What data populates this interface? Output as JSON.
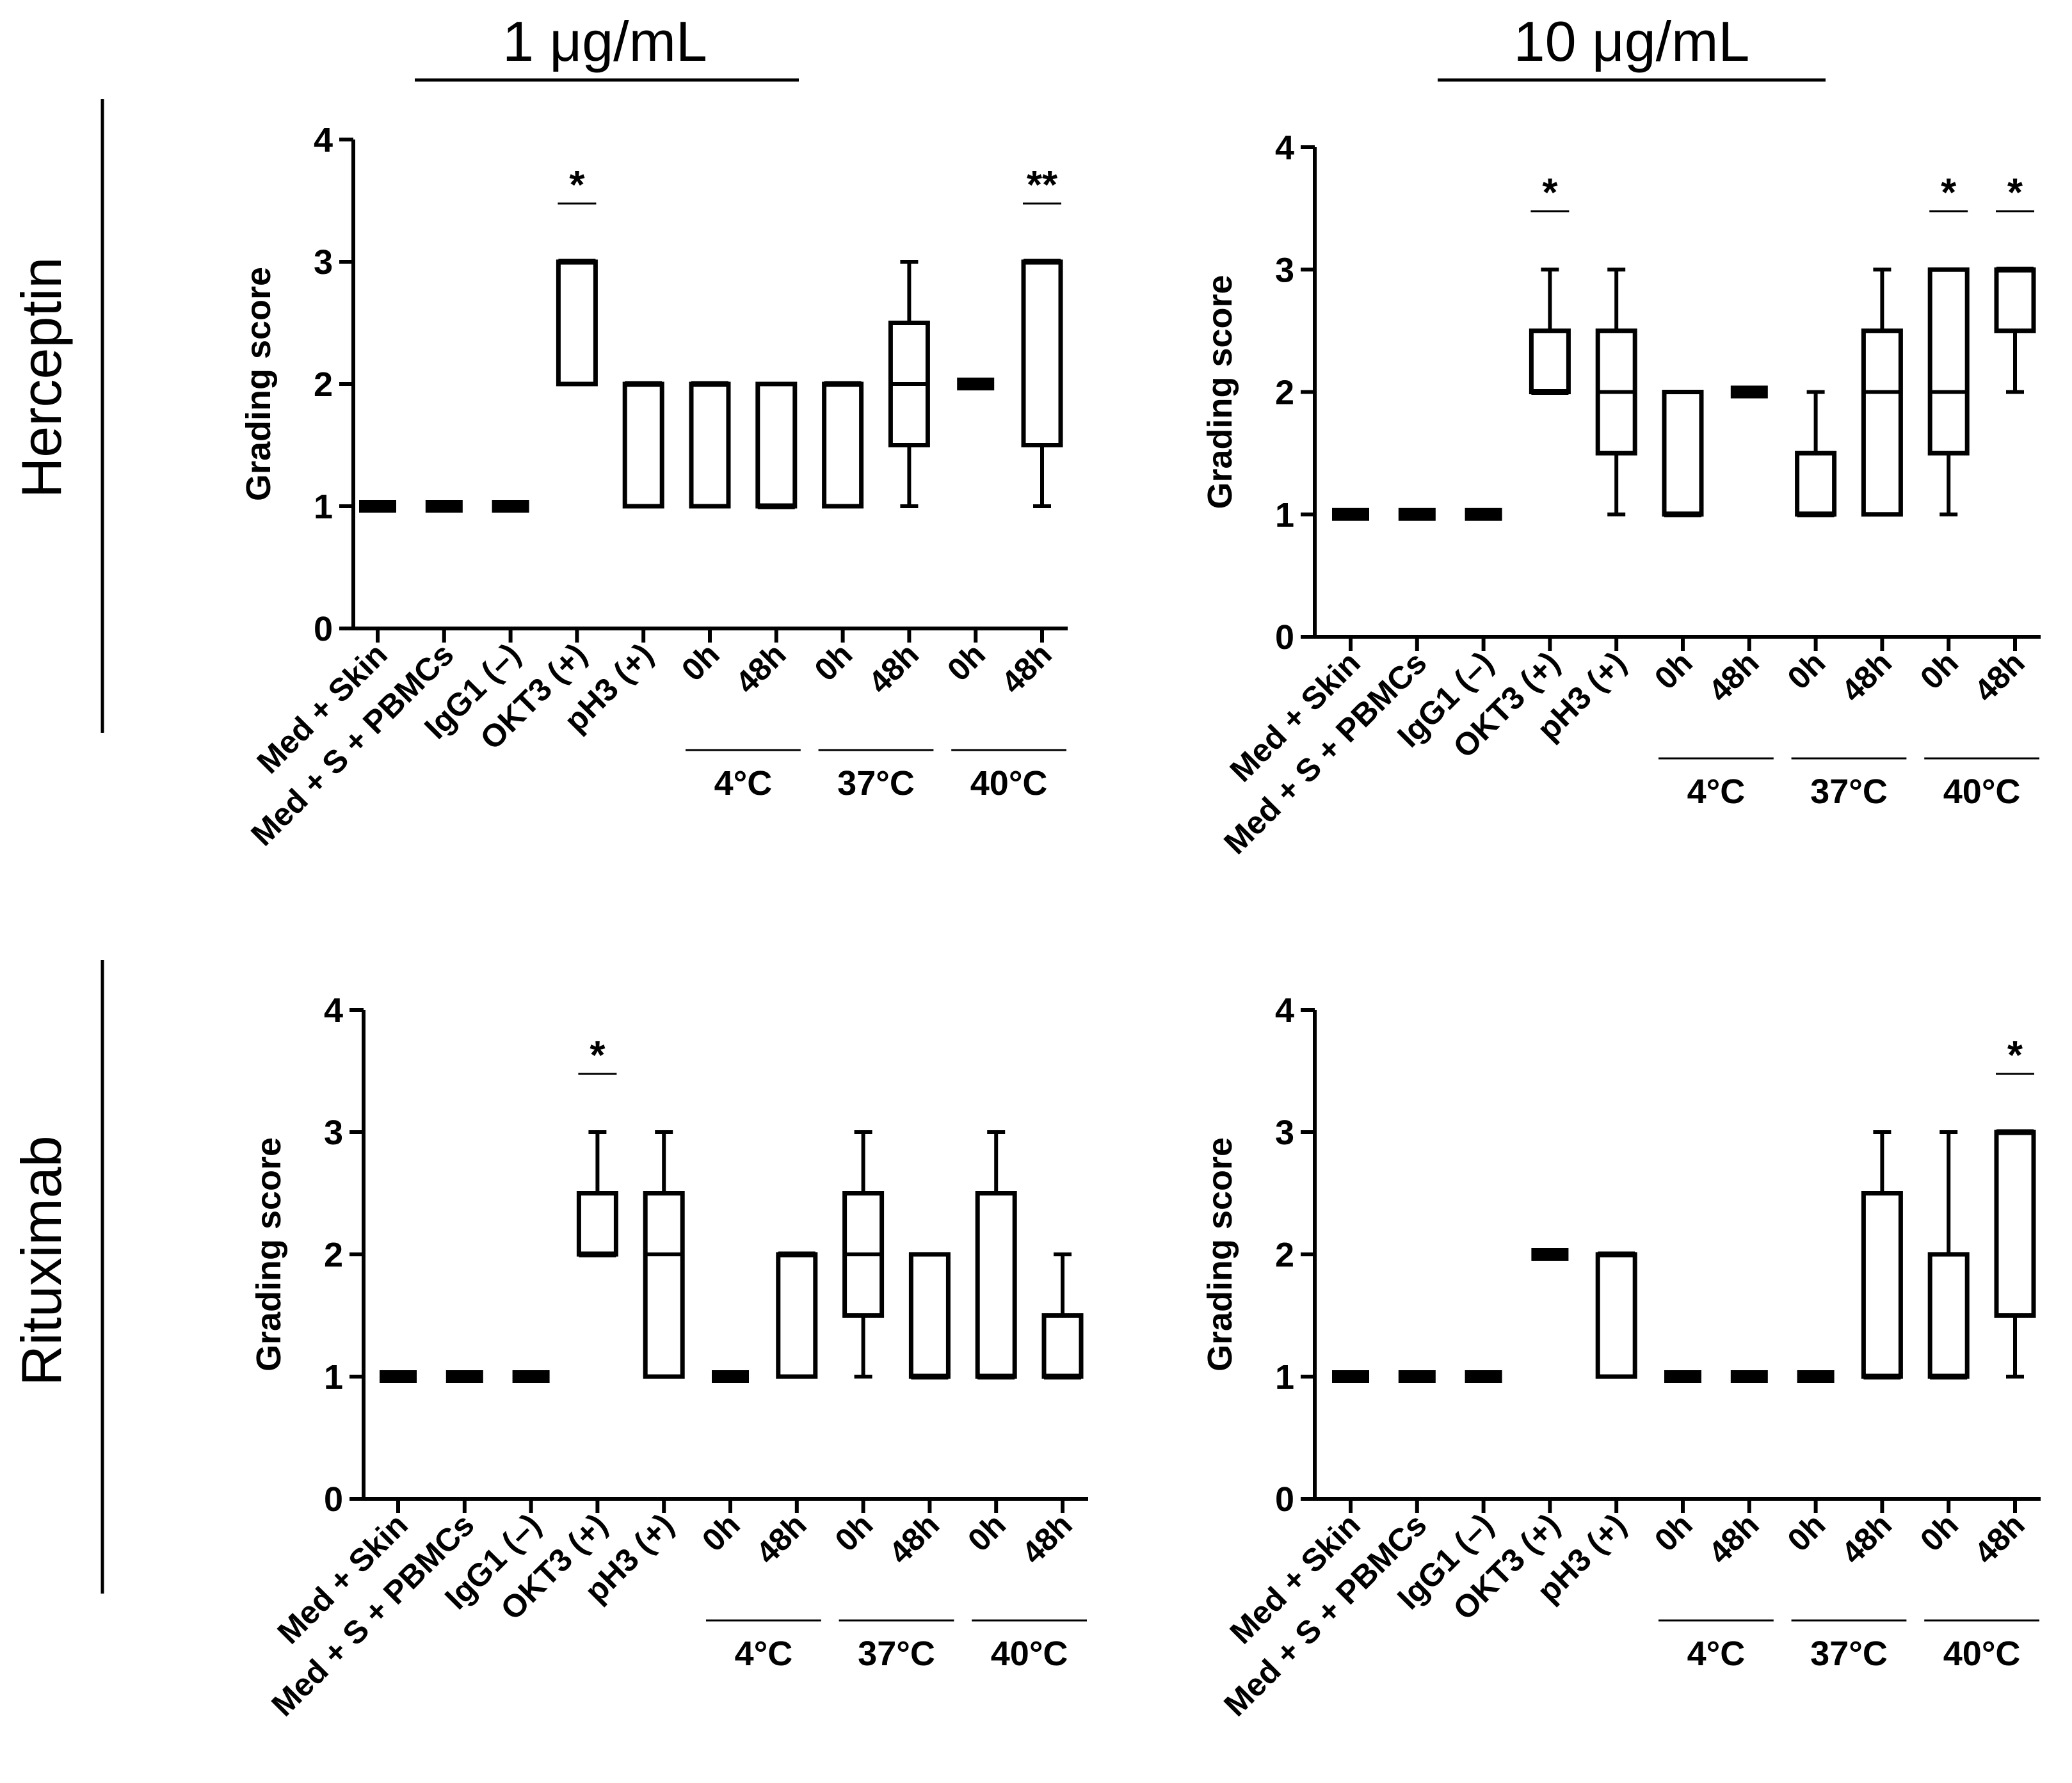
{
  "figure": {
    "columns": [
      "1 μg/mL",
      "10 μg/mL"
    ],
    "rows": [
      "Herceptin",
      "Rituximab"
    ]
  },
  "chart_data": [
    {
      "type": "boxplot",
      "panel": "Herceptin, 1 μg/mL",
      "ylabel": "Grading score",
      "ylim": [
        0,
        4
      ],
      "yticks": [
        "0",
        "1",
        "2",
        "3",
        "4"
      ],
      "categories": [
        "Med + Skin",
        "Med + S + PBMCs",
        "IgG1 (–)",
        "OKT3 (+)",
        "pH3 (+)",
        "0h",
        "48h",
        "0h",
        "48h",
        "0h",
        "48h"
      ],
      "groups": [
        {
          "label": "4°C",
          "members": [
            5,
            6
          ]
        },
        {
          "label": "37°C",
          "members": [
            7,
            8
          ]
        },
        {
          "label": "40°C",
          "members": [
            9,
            10
          ]
        }
      ],
      "boxes": [
        {
          "min": 1,
          "q1": 1,
          "median": 1,
          "q3": 1,
          "max": 1
        },
        {
          "min": 1,
          "q1": 1,
          "median": 1,
          "q3": 1,
          "max": 1
        },
        {
          "min": 1,
          "q1": 1,
          "median": 1,
          "q3": 1,
          "max": 1
        },
        {
          "min": 2,
          "q1": 2,
          "median": 3,
          "q3": 3,
          "max": 3
        },
        {
          "min": 1,
          "q1": 1,
          "median": 2,
          "q3": 2,
          "max": 2
        },
        {
          "min": 1,
          "q1": 1,
          "median": 2,
          "q3": 2,
          "max": 2
        },
        {
          "min": 1,
          "q1": 1,
          "median": 1,
          "q3": 2,
          "max": 2
        },
        {
          "min": 1,
          "q1": 1,
          "median": 2,
          "q3": 2,
          "max": 2
        },
        {
          "min": 1,
          "q1": 1.5,
          "median": 2,
          "q3": 2.5,
          "max": 3
        },
        {
          "min": 2,
          "q1": 2,
          "median": 2,
          "q3": 2,
          "max": 2
        },
        {
          "min": 1,
          "q1": 1.5,
          "median": 3,
          "q3": 3,
          "max": 3
        }
      ],
      "significance": [
        {
          "index": 3,
          "label": "*"
        },
        {
          "index": 10,
          "label": "**"
        }
      ]
    },
    {
      "type": "boxplot",
      "panel": "Herceptin, 10 μg/mL",
      "ylabel": "Grading score",
      "ylim": [
        0,
        4
      ],
      "yticks": [
        "0",
        "1",
        "2",
        "3",
        "4"
      ],
      "categories": [
        "Med + Skin",
        "Med + S + PBMCs",
        "IgG1 (–)",
        "OKT3 (+)",
        "pH3 (+)",
        "0h",
        "48h",
        "0h",
        "48h",
        "0h",
        "48h"
      ],
      "groups": [
        {
          "label": "4°C",
          "members": [
            5,
            6
          ]
        },
        {
          "label": "37°C",
          "members": [
            7,
            8
          ]
        },
        {
          "label": "40°C",
          "members": [
            9,
            10
          ]
        }
      ],
      "boxes": [
        {
          "min": 1,
          "q1": 1,
          "median": 1,
          "q3": 1,
          "max": 1
        },
        {
          "min": 1,
          "q1": 1,
          "median": 1,
          "q3": 1,
          "max": 1
        },
        {
          "min": 1,
          "q1": 1,
          "median": 1,
          "q3": 1,
          "max": 1
        },
        {
          "min": 2,
          "q1": 2,
          "median": 2,
          "q3": 2.5,
          "max": 3
        },
        {
          "min": 1,
          "q1": 1.5,
          "median": 2,
          "q3": 2.5,
          "max": 3
        },
        {
          "min": 1,
          "q1": 1,
          "median": 1,
          "q3": 2,
          "max": 2
        },
        {
          "min": 2,
          "q1": 2,
          "median": 2,
          "q3": 2,
          "max": 2
        },
        {
          "min": 1,
          "q1": 1,
          "median": 1,
          "q3": 1.5,
          "max": 2
        },
        {
          "min": 1,
          "q1": 1,
          "median": 2,
          "q3": 2.5,
          "max": 3
        },
        {
          "min": 1,
          "q1": 1.5,
          "median": 2,
          "q3": 3,
          "max": 3
        },
        {
          "min": 2,
          "q1": 2.5,
          "median": 3,
          "q3": 3,
          "max": 3
        }
      ],
      "significance": [
        {
          "index": 3,
          "label": "*"
        },
        {
          "index": 9,
          "label": "*"
        },
        {
          "index": 10,
          "label": "*"
        }
      ]
    },
    {
      "type": "boxplot",
      "panel": "Rituximab, 1 μg/mL",
      "ylabel": "Grading score",
      "ylim": [
        0,
        4
      ],
      "yticks": [
        "0",
        "1",
        "2",
        "3",
        "4"
      ],
      "categories": [
        "Med + Skin",
        "Med + S + PBMCs",
        "IgG1 (–)",
        "OKT3 (+)",
        "pH3 (+)",
        "0h",
        "48h",
        "0h",
        "48h",
        "0h",
        "48h"
      ],
      "groups": [
        {
          "label": "4°C",
          "members": [
            5,
            6
          ]
        },
        {
          "label": "37°C",
          "members": [
            7,
            8
          ]
        },
        {
          "label": "40°C",
          "members": [
            9,
            10
          ]
        }
      ],
      "boxes": [
        {
          "min": 1,
          "q1": 1,
          "median": 1,
          "q3": 1,
          "max": 1
        },
        {
          "min": 1,
          "q1": 1,
          "median": 1,
          "q3": 1,
          "max": 1
        },
        {
          "min": 1,
          "q1": 1,
          "median": 1,
          "q3": 1,
          "max": 1
        },
        {
          "min": 2,
          "q1": 2,
          "median": 2,
          "q3": 2.5,
          "max": 3
        },
        {
          "min": 1,
          "q1": 1,
          "median": 2,
          "q3": 2.5,
          "max": 3
        },
        {
          "min": 1,
          "q1": 1,
          "median": 1,
          "q3": 1,
          "max": 1
        },
        {
          "min": 1,
          "q1": 1,
          "median": 2,
          "q3": 2,
          "max": 2
        },
        {
          "min": 1,
          "q1": 1.5,
          "median": 2,
          "q3": 2.5,
          "max": 3
        },
        {
          "min": 1,
          "q1": 1,
          "median": 1,
          "q3": 2,
          "max": 2
        },
        {
          "min": 1,
          "q1": 1,
          "median": 1,
          "q3": 2.5,
          "max": 3
        },
        {
          "min": 1,
          "q1": 1,
          "median": 1,
          "q3": 1.5,
          "max": 2
        }
      ],
      "significance": [
        {
          "index": 3,
          "label": "*"
        }
      ]
    },
    {
      "type": "boxplot",
      "panel": "Rituximab, 10 μg/mL",
      "ylabel": "Grading score",
      "ylim": [
        0,
        4
      ],
      "yticks": [
        "0",
        "1",
        "2",
        "3",
        "4"
      ],
      "categories": [
        "Med + Skin",
        "Med + S + PBMCs",
        "IgG1 (–)",
        "OKT3 (+)",
        "pH3 (+)",
        "0h",
        "48h",
        "0h",
        "48h",
        "0h",
        "48h"
      ],
      "groups": [
        {
          "label": "4°C",
          "members": [
            5,
            6
          ]
        },
        {
          "label": "37°C",
          "members": [
            7,
            8
          ]
        },
        {
          "label": "40°C",
          "members": [
            9,
            10
          ]
        }
      ],
      "boxes": [
        {
          "min": 1,
          "q1": 1,
          "median": 1,
          "q3": 1,
          "max": 1
        },
        {
          "min": 1,
          "q1": 1,
          "median": 1,
          "q3": 1,
          "max": 1
        },
        {
          "min": 1,
          "q1": 1,
          "median": 1,
          "q3": 1,
          "max": 1
        },
        {
          "min": 2,
          "q1": 2,
          "median": 2,
          "q3": 2,
          "max": 2
        },
        {
          "min": 1,
          "q1": 1,
          "median": 2,
          "q3": 2,
          "max": 2
        },
        {
          "min": 1,
          "q1": 1,
          "median": 1,
          "q3": 1,
          "max": 1
        },
        {
          "min": 1,
          "q1": 1,
          "median": 1,
          "q3": 1,
          "max": 1
        },
        {
          "min": 1,
          "q1": 1,
          "median": 1,
          "q3": 1,
          "max": 1
        },
        {
          "min": 1,
          "q1": 1,
          "median": 1,
          "q3": 2.5,
          "max": 3
        },
        {
          "min": 1,
          "q1": 1,
          "median": 1,
          "q3": 2,
          "max": 3
        },
        {
          "min": 1,
          "q1": 1.5,
          "median": 3,
          "q3": 3,
          "max": 3
        }
      ],
      "significance": [
        {
          "index": 10,
          "label": "*"
        }
      ]
    }
  ]
}
